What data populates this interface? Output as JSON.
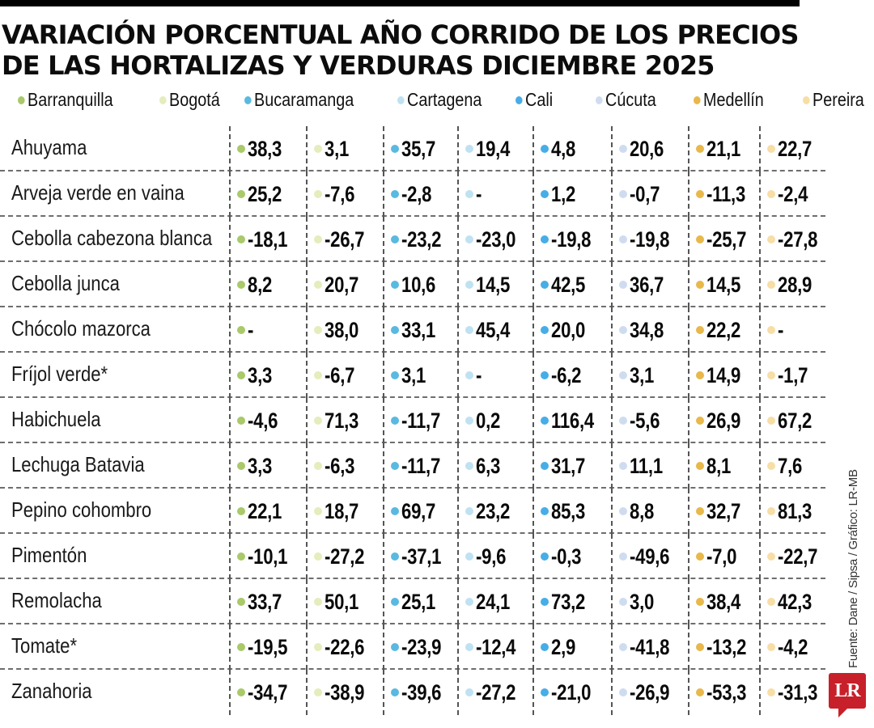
{
  "title": "VARIACIÓN PORCENTUAL AÑO CORRIDO DE LOS PRECIOS DE LAS HORTALIZAS Y VERDURAS DICIEMBRE 2025",
  "title_lines": [
    "VARIACIÓN PORCENTUAL AÑO CORRIDO DE LOS PRECIOS",
    "DE LAS HORTALIZAS Y VERDURAS DICIEMBRE 2025"
  ],
  "legend": [
    {
      "label": "Barranquilla",
      "color": "#a9c96a"
    },
    {
      "label": "Bogotá",
      "color": "#e6ecbc"
    },
    {
      "label": "Bucaramanga",
      "color": "#5ab9e0"
    },
    {
      "label": "Cartagena",
      "color": "#bfe2f2"
    },
    {
      "label": "Cali",
      "color": "#47ade6"
    },
    {
      "label": "Cúcuta",
      "color": "#cfdcf0"
    },
    {
      "label": "Medellín",
      "color": "#e8b84a"
    },
    {
      "label": "Pereira",
      "color": "#f7dea6"
    }
  ],
  "source": "Fuente: Dane / Sipsa / Gráfico: LR-MB",
  "logo": "LR",
  "chart_data": {
    "type": "table",
    "title": "Variación porcentual año corrido de los precios de las hortalizas y verduras diciembre 2025",
    "columns": [
      "Barranquilla",
      "Bogotá",
      "Bucaramanga",
      "Cartagena",
      "Cali",
      "Cúcuta",
      "Medellín",
      "Pereira"
    ],
    "rows": [
      {
        "label": "Ahuyama",
        "values": [
          "38,3",
          "3,1",
          "35,7",
          "19,4",
          "4,8",
          "20,6",
          "21,1",
          "22,7"
        ]
      },
      {
        "label": "Arveja verde en vaina",
        "values": [
          "25,2",
          "-7,6",
          "-2,8",
          "-",
          "1,2",
          "-0,7",
          "-11,3",
          "-2,4"
        ]
      },
      {
        "label": "Cebolla cabezona blanca",
        "values": [
          "-18,1",
          "-26,7",
          "-23,2",
          "-23,0",
          "-19,8",
          "-19,8",
          "-25,7",
          "-27,8"
        ]
      },
      {
        "label": "Cebolla junca",
        "values": [
          "8,2",
          "20,7",
          "10,6",
          "14,5",
          "42,5",
          "36,7",
          "14,5",
          "28,9"
        ]
      },
      {
        "label": "Chócolo mazorca",
        "values": [
          "-",
          "38,0",
          "33,1",
          "45,4",
          "20,0",
          "34,8",
          "22,2",
          "-"
        ]
      },
      {
        "label": "Fríjol verde*",
        "values": [
          "3,3",
          "-6,7",
          "3,1",
          "-",
          "-6,2",
          "3,1",
          "14,9",
          "-1,7"
        ]
      },
      {
        "label": "Habichuela",
        "values": [
          "-4,6",
          "71,3",
          "-11,7",
          "0,2",
          "116,4",
          "-5,6",
          "26,9",
          "67,2"
        ]
      },
      {
        "label": "Lechuga Batavia",
        "values": [
          "3,3",
          "-6,3",
          "-11,7",
          "6,3",
          "31,7",
          "11,1",
          "8,1",
          "7,6"
        ]
      },
      {
        "label": "Pepino cohombro",
        "values": [
          "22,1",
          "18,7",
          "69,7",
          "23,2",
          "85,3",
          "8,8",
          "32,7",
          "81,3"
        ]
      },
      {
        "label": "Pimentón",
        "values": [
          "-10,1",
          "-27,2",
          "-37,1",
          "-9,6",
          "-0,3",
          "-49,6",
          "-7,0",
          "-22,7"
        ]
      },
      {
        "label": "Remolacha",
        "values": [
          "33,7",
          "50,1",
          "25,1",
          "24,1",
          "73,2",
          "3,0",
          "38,4",
          "42,3"
        ]
      },
      {
        "label": "Tomate*",
        "values": [
          "-19,5",
          "-22,6",
          "-23,9",
          "-12,4",
          "2,9",
          "-41,8",
          "-13,2",
          "-4,2"
        ]
      },
      {
        "label": "Zanahoria",
        "values": [
          "-34,7",
          "-38,9",
          "-39,6",
          "-27,2",
          "-21,0",
          "-26,9",
          "-53,3",
          "-31,3"
        ]
      }
    ],
    "unit": "%",
    "source": "Fuente: Dane / Sipsa / Gráfico: LR-MB"
  }
}
